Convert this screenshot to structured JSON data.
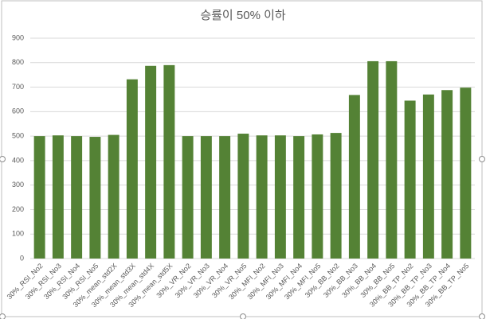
{
  "chart_data": {
    "type": "bar",
    "title": "승률이 50% 이하",
    "categories": [
      "30%_RSI_No2",
      "30%_RSI_No3",
      "30%_RSI_No4",
      "30%_RSI_No5",
      "30%_mean_std2X",
      "30%_mean_std3X",
      "30%_mean_std4X",
      "30%_mean_std5X",
      "30%_VR_No2",
      "30%_VR_No3",
      "30%_VR_No4",
      "30%_VR_No5",
      "30%_MFI_No2",
      "30%_MFI_No3",
      "30%_MFI_No4",
      "30%_MFI_No5",
      "30%_BB_No2",
      "30%_BB_No3",
      "30%_BB_No4",
      "30%_BB_No5",
      "30%_BB_TP_No2",
      "30%_BB_TP_No3",
      "30%_BB_TP_No4",
      "30%_BB_TP_No5"
    ],
    "values": [
      500,
      503,
      500,
      497,
      505,
      732,
      787,
      790,
      500,
      500,
      500,
      510,
      503,
      503,
      500,
      507,
      513,
      668,
      806,
      806,
      645,
      670,
      688,
      698
    ],
    "color": "#548235",
    "ylim": [
      0,
      900
    ],
    "yticks": [
      0,
      100,
      200,
      300,
      400,
      500,
      600,
      700,
      800,
      900
    ],
    "grid": true
  }
}
